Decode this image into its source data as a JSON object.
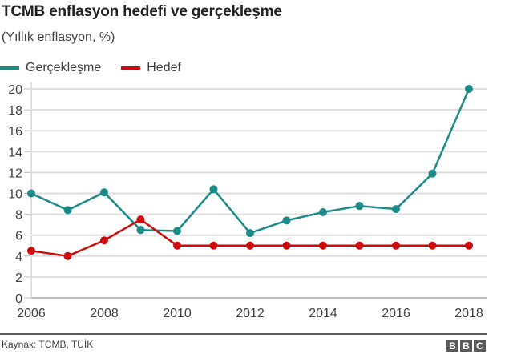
{
  "header": {
    "title": "TCMB enflasyon hedefi ve gerçekleşme",
    "subtitle": "(Yıllık enflasyon, %)"
  },
  "legend": [
    {
      "label": "Gerçekleşme",
      "color": "#1b8a89"
    },
    {
      "label": "Hedef",
      "color": "#cc0a0a"
    }
  ],
  "footer": {
    "source": "Kaynak: TCMB, TÜİK",
    "logo": [
      "B",
      "B",
      "C"
    ]
  },
  "chart_data": {
    "type": "line",
    "title": "TCMB enflasyon hedefi ve gerçekleşme",
    "subtitle": "(Yıllık enflasyon, %)",
    "xlabel": "",
    "ylabel": "Yıllık enflasyon, %",
    "x": [
      2006,
      2007,
      2008,
      2009,
      2010,
      2011,
      2012,
      2013,
      2014,
      2015,
      2016,
      2017,
      2018
    ],
    "x_ticks": [
      "2006",
      "2008",
      "2010",
      "2012",
      "2014",
      "2016",
      "2018"
    ],
    "y_ticks": [
      0,
      2,
      4,
      6,
      8,
      10,
      12,
      14,
      16,
      18,
      20
    ],
    "ylim": [
      0,
      20
    ],
    "grid": "horizontal",
    "legend_position": "top-left",
    "series": [
      {
        "name": "Gerçekleşme",
        "color": "#1b8a89",
        "values": [
          10.0,
          8.4,
          10.1,
          6.5,
          6.4,
          10.4,
          6.2,
          7.4,
          8.2,
          8.8,
          8.5,
          11.9,
          20.0
        ]
      },
      {
        "name": "Hedef",
        "color": "#cc0a0a",
        "values": [
          4.5,
          4.0,
          5.5,
          7.5,
          5.0,
          5.0,
          5.0,
          5.0,
          5.0,
          5.0,
          5.0,
          5.0,
          5.0
        ]
      }
    ]
  }
}
